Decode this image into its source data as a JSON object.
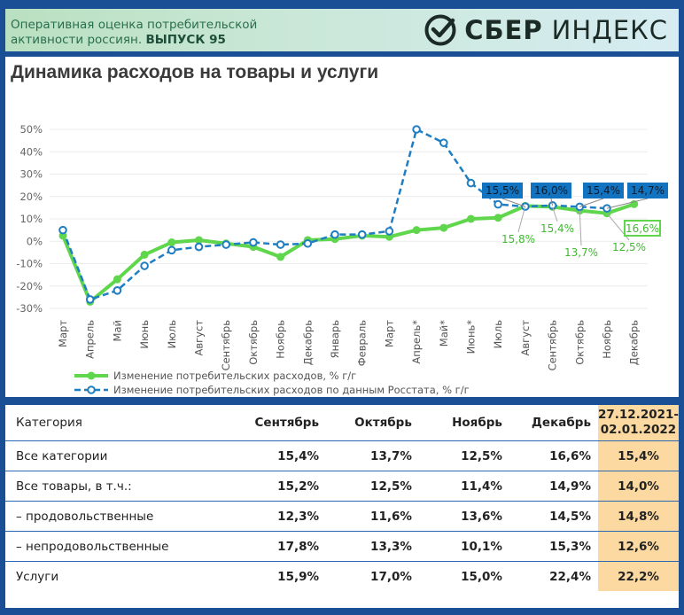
{
  "header": {
    "subtitle_line1": "Оперативная оценка потребительской",
    "subtitle_line2": "активности россиян. ",
    "issue": "ВЫПУСК 95",
    "brand_bold": "СБЕР",
    "brand_light": "ИНДЕКС"
  },
  "colors": {
    "green": "#5fd64b",
    "blue": "#1f7ec2",
    "highlight": "#fbd9a1",
    "frame": "#1a4f96"
  },
  "chart_data": {
    "type": "line",
    "title": "Динамика расходов на товары и услуги",
    "ylim": [
      -30,
      50
    ],
    "yticks": [
      "50%",
      "40%",
      "30%",
      "20%",
      "10%",
      "0%",
      "-10%",
      "-20%",
      "-30%"
    ],
    "categories": [
      "Март",
      "Апрель",
      "Май",
      "Июнь",
      "Июль",
      "Август",
      "Сентябрь",
      "Октябрь",
      "Ноябрь",
      "Декабрь",
      "Январь",
      "Февраль",
      "Март",
      "Апрель*",
      "Май*",
      "Июнь*",
      "Июль",
      "Август",
      "Сентябрь",
      "Октябрь",
      "Ноябрь",
      "Декабрь"
    ],
    "series": [
      {
        "name": "Изменение потребительских расходов, % г/г",
        "values": [
          2.5,
          -27,
          -17,
          -6,
          -0.5,
          0.5,
          -1,
          -2.5,
          -7,
          0.5,
          1,
          2.5,
          2,
          5,
          6,
          10,
          10.5,
          15.8,
          15.4,
          13.7,
          12.5,
          16.6
        ]
      },
      {
        "name": "Изменение потребительских расходов по данным Росстата, % г/г",
        "values": [
          5,
          -26,
          -22,
          -11,
          -4,
          -2.5,
          -1.5,
          -0.5,
          -1.5,
          -1,
          3,
          3,
          4.5,
          50,
          44,
          26,
          16.5,
          15.5,
          16,
          15.4,
          14.7,
          null
        ]
      }
    ],
    "green_labels": [
      {
        "index": 17,
        "text": "15,8%"
      },
      {
        "index": 18,
        "text": "15,4%"
      },
      {
        "index": 19,
        "text": "13,7%"
      },
      {
        "index": 20,
        "text": "12,5%"
      },
      {
        "index": 21,
        "text": "16,6%"
      }
    ],
    "blue_labels": [
      {
        "index": 17,
        "text": "15,5%"
      },
      {
        "index": 18,
        "text": "16,0%"
      },
      {
        "index": 19,
        "text": "15,4%"
      },
      {
        "index": 20,
        "text": "14,7%"
      }
    ]
  },
  "table": {
    "headers": [
      "Категория",
      "Сентябрь",
      "Октябрь",
      "Ноябрь",
      "Декабрь"
    ],
    "hl_header_line1": "27.12.2021-",
    "hl_header_line2": "02.01.2022",
    "rows": [
      {
        "cat": "Все категории",
        "v": [
          "15,4%",
          "13,7%",
          "12,5%",
          "16,6%",
          "15,4%"
        ]
      },
      {
        "cat": "Все товары, в т.ч.:",
        "v": [
          "15,2%",
          "12,5%",
          "11,4%",
          "14,9%",
          "14,0%"
        ]
      },
      {
        "cat": "– продовольственные",
        "v": [
          "12,3%",
          "11,6%",
          "13,6%",
          "14,5%",
          "14,8%"
        ]
      },
      {
        "cat": "– непродовольственные",
        "v": [
          "17,8%",
          "13,3%",
          "10,1%",
          "15,3%",
          "12,6%"
        ]
      },
      {
        "cat": "Услуги",
        "v": [
          "15,9%",
          "17,0%",
          "15,0%",
          "22,4%",
          "22,2%"
        ]
      }
    ]
  }
}
